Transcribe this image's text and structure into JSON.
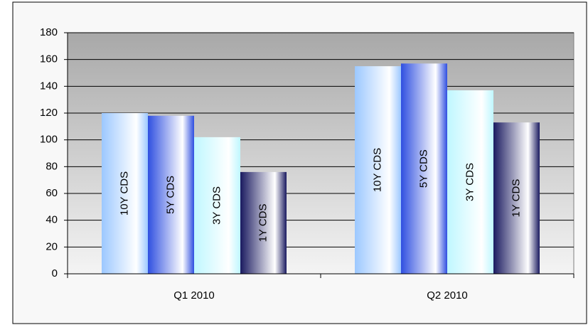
{
  "chart_data": {
    "type": "bar",
    "categories": [
      "Q1 2010",
      "Q2 2010"
    ],
    "series": [
      {
        "name": "10Y CDS",
        "color": "#9cc8ff",
        "values": [
          120,
          155
        ]
      },
      {
        "name": "5Y CDS",
        "color": "#2f4fe0",
        "values": [
          118,
          157
        ]
      },
      {
        "name": "3Y CDS",
        "color": "#bff7ff",
        "values": [
          102,
          137
        ]
      },
      {
        "name": "1Y CDS",
        "color": "#1a1a60",
        "values": [
          76,
          113
        ]
      }
    ],
    "ylim": [
      0,
      180
    ],
    "yticks": [
      0,
      20,
      40,
      60,
      80,
      100,
      120,
      140,
      160,
      180
    ],
    "grid": true
  }
}
